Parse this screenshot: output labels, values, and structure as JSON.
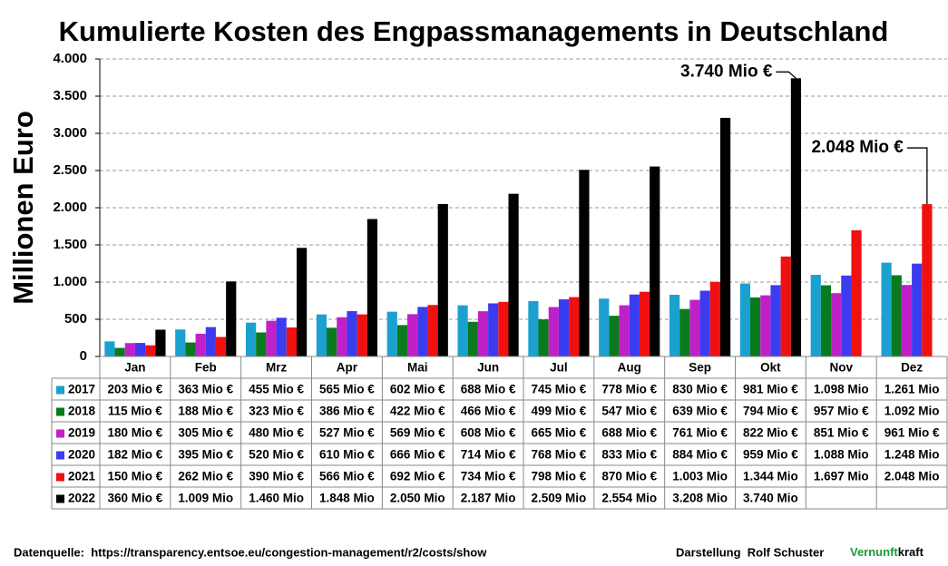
{
  "chart_data": {
    "type": "bar",
    "title": "Kumulierte Kosten des Engpassmanagements in Deutschland",
    "y_label": "Millionen Euro",
    "categories": [
      "Jan",
      "Feb",
      "Mrz",
      "Apr",
      "Mai",
      "Jun",
      "Jul",
      "Aug",
      "Sep",
      "Okt",
      "Nov",
      "Dez"
    ],
    "series": [
      {
        "name": "2017",
        "color": "#1ba1d0",
        "values": [
          203,
          363,
          455,
          565,
          602,
          688,
          745,
          778,
          830,
          981,
          1098,
          1261
        ],
        "value_labels": [
          "203 Mio €",
          "363 Mio €",
          "455 Mio €",
          "565 Mio €",
          "602 Mio €",
          "688 Mio €",
          "745 Mio €",
          "778 Mio €",
          "830 Mio €",
          "981 Mio €",
          "1.098 Mio",
          "1.261 Mio"
        ]
      },
      {
        "name": "2018",
        "color": "#0a7a1e",
        "values": [
          115,
          188,
          323,
          386,
          422,
          466,
          499,
          547,
          639,
          794,
          957,
          1092
        ],
        "value_labels": [
          "115 Mio €",
          "188 Mio €",
          "323 Mio €",
          "386 Mio €",
          "422 Mio €",
          "466 Mio €",
          "499 Mio €",
          "547 Mio €",
          "639 Mio €",
          "794 Mio €",
          "957 Mio €",
          "1.092 Mio"
        ]
      },
      {
        "name": "2019",
        "color": "#c020c8",
        "values": [
          180,
          305,
          480,
          527,
          569,
          608,
          665,
          688,
          761,
          822,
          851,
          961
        ],
        "value_labels": [
          "180 Mio €",
          "305 Mio €",
          "480 Mio €",
          "527 Mio €",
          "569 Mio €",
          "608 Mio €",
          "665 Mio €",
          "688 Mio €",
          "761 Mio €",
          "822 Mio €",
          "851 Mio €",
          "961 Mio €"
        ]
      },
      {
        "name": "2020",
        "color": "#3b3bf0",
        "values": [
          182,
          395,
          520,
          610,
          666,
          714,
          768,
          833,
          884,
          959,
          1088,
          1248
        ],
        "value_labels": [
          "182 Mio €",
          "395 Mio €",
          "520 Mio €",
          "610 Mio €",
          "666 Mio €",
          "714 Mio €",
          "768 Mio €",
          "833 Mio €",
          "884 Mio €",
          "959 Mio €",
          "1.088 Mio",
          "1.248 Mio"
        ]
      },
      {
        "name": "2021",
        "color": "#f01010",
        "values": [
          150,
          262,
          390,
          566,
          692,
          734,
          798,
          870,
          1003,
          1344,
          1697,
          2048
        ],
        "value_labels": [
          "150 Mio €",
          "262 Mio €",
          "390 Mio €",
          "566 Mio €",
          "692 Mio €",
          "734 Mio €",
          "798 Mio €",
          "870 Mio €",
          "1.003 Mio",
          "1.344 Mio",
          "1.697 Mio",
          "2.048 Mio"
        ]
      },
      {
        "name": "2022",
        "color": "#000000",
        "values": [
          360,
          1009,
          1460,
          1848,
          2050,
          2187,
          2509,
          2554,
          3208,
          3740,
          null,
          null
        ],
        "value_labels": [
          "360 Mio €",
          "1.009 Mio",
          "1.460 Mio",
          "1.848 Mio",
          "2.050 Mio",
          "2.187 Mio",
          "2.509 Mio",
          "2.554 Mio",
          "3.208 Mio",
          "3.740 Mio",
          null,
          null
        ]
      }
    ],
    "ylim": [
      0,
      4000
    ],
    "yticks": [
      0,
      500,
      {
        "value": 1000,
        "label": "1.000"
      },
      {
        "value": 1500,
        "label": "1.500"
      },
      {
        "value": 2000,
        "label": "2.000"
      },
      {
        "value": 2500,
        "label": "2.500"
      },
      {
        "value": 3000,
        "label": "3.000"
      },
      {
        "value": 3500,
        "label": "3.500"
      },
      {
        "value": 4000,
        "label": "4.000"
      }
    ],
    "grid": true,
    "annotations": [
      "3.740 Mio €",
      "2.048 Mio €"
    ],
    "source": "Datenquelle:  https://transparency.entsoe.eu/congestion-management/r2/costs/show",
    "credit": "Darstellung  Rolf Schuster",
    "brand": [
      "Vernunft",
      "kraft"
    ]
  }
}
